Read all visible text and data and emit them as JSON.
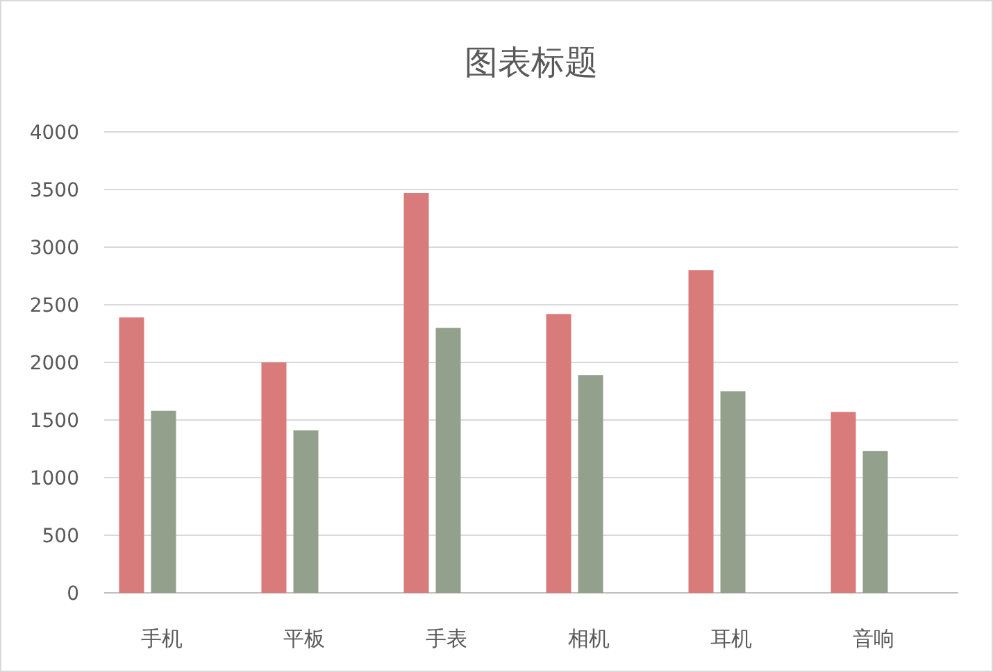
{
  "chart_data": {
    "type": "bar",
    "title": "图表标题",
    "categories": [
      "手机",
      "平板",
      "手表",
      "相机",
      "耳机",
      "音响"
    ],
    "series": [
      {
        "color": "#d97b7b",
        "values": [
          2390,
          2000,
          3470,
          2420,
          2800,
          1570
        ]
      },
      {
        "color": "#93a08b",
        "values": [
          1580,
          1410,
          2300,
          1890,
          1750,
          1230
        ]
      }
    ],
    "ylim": [
      0,
      4000
    ],
    "yticks": [
      0,
      500,
      1000,
      1500,
      2000,
      2500,
      3000,
      3500,
      4000
    ],
    "grid": "y"
  }
}
